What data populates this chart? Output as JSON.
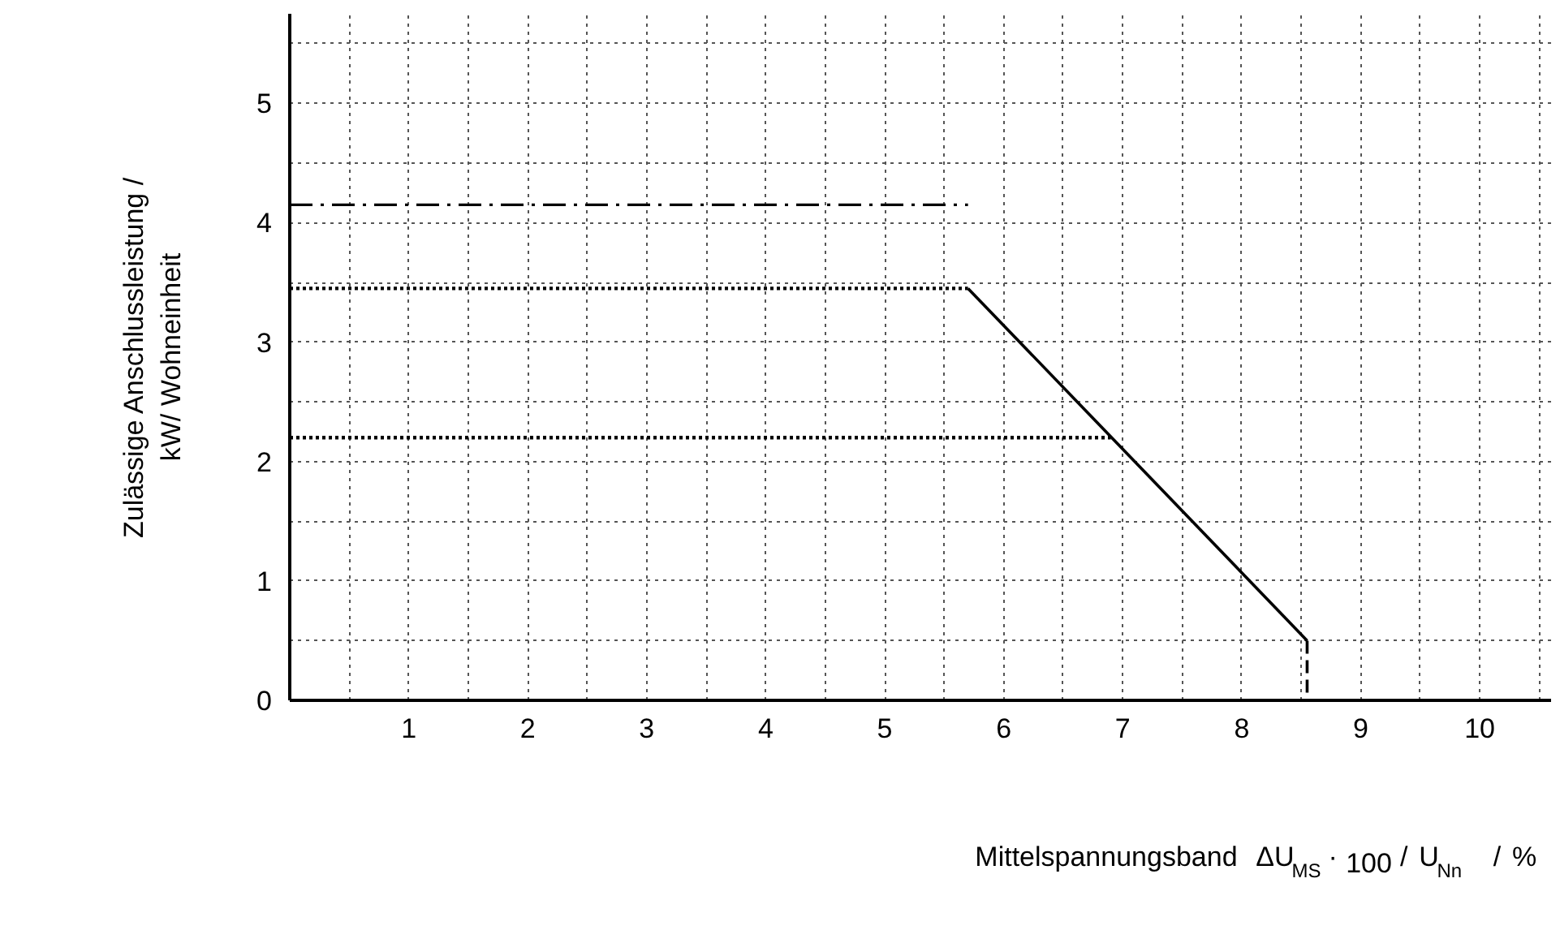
{
  "chart_data": {
    "type": "line",
    "xlabel": "Mittelspannungsband   ΔU$_{MS}$ · 100 / U$_{Nn}$   / %",
    "ylabel": "Zulässige Anschlussleistung /\nkW/ Wohneinheit",
    "series": [
      {
        "color": "#000000",
        "x": [
          0,
          5.7
        ],
        "values": [
          4.15,
          4.15
        ],
        "line_style": "dashdot"
      },
      {
        "color": "#000000",
        "x": [
          0,
          5.7
        ],
        "values": [
          3.45,
          3.45
        ],
        "line_style": "dotted"
      },
      {
        "color": "#000000",
        "x": [
          5.7,
          8.55
        ],
        "values": [
          3.45,
          0.5
        ],
        "line_style": "solid"
      },
      {
        "color": "#000000",
        "x": [
          8.55,
          8.55
        ],
        "values": [
          0.5,
          0
        ],
        "line_style": "dashed"
      },
      {
        "color": "#000000",
        "x": [
          0,
          6.9
        ],
        "values": [
          2.2,
          2.2
        ],
        "line_style": "dotted"
      }
    ],
    "xlim": [
      0,
      10.6
    ],
    "ylim": [
      0,
      5.75
    ],
    "xticks": [
      1,
      2,
      3,
      4,
      5,
      6,
      7,
      8,
      9,
      10
    ],
    "yticks": [
      0,
      1,
      2,
      3,
      4,
      5
    ],
    "grid": true
  }
}
